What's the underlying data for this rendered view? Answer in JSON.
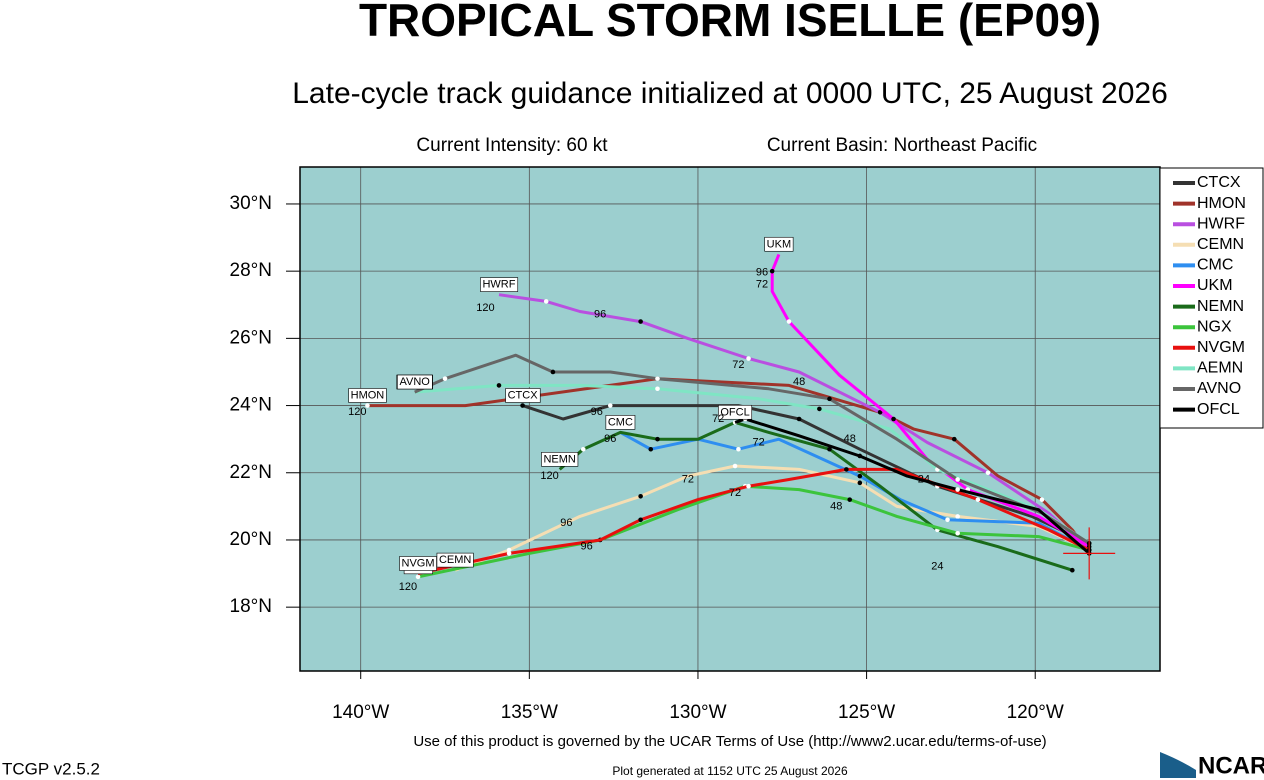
{
  "chart_data": {
    "type": "line",
    "title": "TROPICAL STORM ISELLE (EP09)",
    "subtitle": "Late-cycle track guidance initialized at 0000 UTC, 25 August 2026",
    "intensity": "Current Intensity: 60 kt",
    "basin": "Current Basin: Northeast Pacific",
    "xlim": [
      -141.8,
      -116.3
    ],
    "ylim": [
      16.1,
      31.1
    ],
    "xticks": [
      {
        "value": -140,
        "label": "140°W"
      },
      {
        "value": -135,
        "label": "135°W"
      },
      {
        "value": -130,
        "label": "130°W"
      },
      {
        "value": -125,
        "label": "125°W"
      },
      {
        "value": -120,
        "label": "120°W"
      }
    ],
    "yticks": [
      {
        "value": 18,
        "label": "18°N"
      },
      {
        "value": 20,
        "label": "20°N"
      },
      {
        "value": 22,
        "label": "22°N"
      },
      {
        "value": 24,
        "label": "24°N"
      },
      {
        "value": 26,
        "label": "26°N"
      },
      {
        "value": 28,
        "label": "28°N"
      },
      {
        "value": 30,
        "label": "30°N"
      }
    ],
    "grid": true,
    "background": "#9ccfcf",
    "series": [
      {
        "name": "CTCX",
        "color": "#333333",
        "x": [
          -118.4,
          -120.1,
          -122.9,
          -125.2,
          -127.0,
          -128.8,
          -132.6,
          -134.0,
          -135.2
        ],
        "values": [
          19.9,
          20.7,
          21.6,
          22.7,
          23.6,
          24.0,
          24.0,
          23.6,
          24.0
        ]
      },
      {
        "name": "HMON",
        "color": "#a0332a",
        "x": [
          -118.4,
          -118.9,
          -119.8,
          -121.1,
          -122.4,
          -123.6,
          -124.6,
          -127.3,
          -131.2,
          -136.9,
          -139.8
        ],
        "values": [
          19.6,
          20.3,
          21.2,
          21.9,
          23.0,
          23.3,
          23.8,
          24.6,
          24.8,
          24.0,
          24.0
        ]
      },
      {
        "name": "HWRF",
        "color": "#b94fe0",
        "x": [
          -118.4,
          -119.6,
          -121.4,
          -123.2,
          -124.6,
          -127.0,
          -128.5,
          -130.3,
          -131.7,
          -133.5,
          -134.5,
          -135.9
        ],
        "values": [
          19.7,
          20.8,
          22.0,
          22.9,
          23.8,
          25.0,
          25.4,
          26.0,
          26.5,
          26.8,
          27.1,
          27.3
        ]
      },
      {
        "name": "CEMN",
        "color": "#f5deb3",
        "x": [
          -118.4,
          -119.9,
          -122.3,
          -124.1,
          -125.2,
          -127.0,
          -128.9,
          -130.3,
          -131.7,
          -133.5,
          -135.6,
          -137.2
        ],
        "values": [
          19.7,
          20.4,
          20.7,
          21.0,
          21.7,
          22.1,
          22.2,
          21.9,
          21.3,
          20.7,
          19.7,
          19.1
        ]
      },
      {
        "name": "CMC",
        "color": "#2e8ef0",
        "x": [
          -118.4,
          -119.9,
          -122.6,
          -124.0,
          -125.2,
          -127.6,
          -128.8,
          -130.0,
          -131.4,
          -132.3
        ],
        "values": [
          19.7,
          20.5,
          20.6,
          21.2,
          21.9,
          23.0,
          22.7,
          23.0,
          22.7,
          23.2
        ]
      },
      {
        "name": "UKM",
        "color": "#ff00ff",
        "x": [
          -118.4,
          -119.9,
          -122.0,
          -123.2,
          -124.2,
          -125.8,
          -127.3,
          -127.8,
          -127.8,
          -127.6
        ],
        "values": [
          19.8,
          20.7,
          21.5,
          22.4,
          23.6,
          24.9,
          26.5,
          27.4,
          28.0,
          28.5
        ]
      },
      {
        "name": "NEMN",
        "color": "#1a6b1a",
        "x": [
          -118.9,
          -121.1,
          -122.9,
          -124.6,
          -126.1,
          -127.9,
          -128.9,
          -130.0,
          -131.2,
          -132.3,
          -133.4,
          -134.1
        ],
        "values": [
          19.1,
          19.8,
          20.3,
          21.6,
          22.7,
          23.2,
          23.5,
          23.0,
          23.0,
          23.2,
          22.7,
          22.1
        ]
      },
      {
        "name": "NGX",
        "color": "#3cc43c",
        "x": [
          -118.4,
          -119.9,
          -122.3,
          -124.1,
          -125.5,
          -127.0,
          -128.6,
          -130.6,
          -132.9,
          -135.0,
          -138.3
        ],
        "values": [
          19.7,
          20.1,
          20.2,
          20.7,
          21.2,
          21.5,
          21.6,
          20.9,
          20.0,
          19.6,
          18.9
        ]
      },
      {
        "name": "NVGM",
        "color": "#e8100f",
        "x": [
          -118.4,
          -119.6,
          -121.7,
          -124.1,
          -125.6,
          -127.3,
          -128.5,
          -130.0,
          -131.7,
          -132.9,
          -135.6,
          -138.3
        ],
        "values": [
          19.7,
          20.3,
          21.2,
          22.1,
          22.1,
          21.8,
          21.6,
          21.2,
          20.6,
          20.0,
          19.6,
          19.0
        ]
      },
      {
        "name": "AEMN",
        "color": "#7fe5c4",
        "x": [
          -118.4,
          -119.9,
          -122.9,
          -124.3,
          -126.4,
          -128.2,
          -131.2,
          -133.5,
          -135.9,
          -138.4
        ],
        "values": [
          19.9,
          20.9,
          22.1,
          23.3,
          23.9,
          24.2,
          24.5,
          24.6,
          24.6,
          24.4
        ]
      },
      {
        "name": "AVNO",
        "color": "#666666",
        "x": [
          -118.4,
          -119.8,
          -122.3,
          -124.1,
          -126.1,
          -127.9,
          -131.2,
          -132.6,
          -134.3,
          -135.4,
          -137.5,
          -138.4
        ],
        "values": [
          19.9,
          20.8,
          21.8,
          23.0,
          24.2,
          24.5,
          24.8,
          25.0,
          25.0,
          25.5,
          24.8,
          24.4
        ]
      },
      {
        "name": "OFCL",
        "color": "#000000",
        "x": [
          -118.4,
          -119.9,
          -122.3,
          -123.8,
          -125.2,
          -127.0,
          -128.6,
          -128.9
        ],
        "values": [
          19.6,
          20.9,
          21.5,
          21.9,
          22.5,
          23.1,
          23.6,
          23.5
        ]
      }
    ],
    "hour_labels": [
      {
        "hour": 120,
        "x": -136.3,
        "y": 26.9
      },
      {
        "hour": 96,
        "x": -132.9,
        "y": 26.7
      },
      {
        "hour": 72,
        "x": -128.8,
        "y": 25.2
      },
      {
        "hour": 48,
        "x": -127.0,
        "y": 24.7
      },
      {
        "hour": 120,
        "x": -140.1,
        "y": 23.8
      },
      {
        "hour": 96,
        "x": -133.0,
        "y": 23.8
      },
      {
        "hour": 96,
        "x": -132.6,
        "y": 23.0
      },
      {
        "hour": 120,
        "x": -134.4,
        "y": 21.9
      },
      {
        "hour": 72,
        "x": -130.3,
        "y": 21.8
      },
      {
        "hour": 96,
        "x": -133.9,
        "y": 20.5
      },
      {
        "hour": 72,
        "x": -128.9,
        "y": 21.4
      },
      {
        "hour": 48,
        "x": -125.9,
        "y": 21.0
      },
      {
        "hour": 48,
        "x": -125.5,
        "y": 23.0
      },
      {
        "hour": 24,
        "x": -123.3,
        "y": 21.8
      },
      {
        "hour": 24,
        "x": -122.9,
        "y": 19.2
      },
      {
        "hour": 120,
        "x": -138.6,
        "y": 18.6
      },
      {
        "hour": 96,
        "x": -133.3,
        "y": 19.8
      },
      {
        "hour": 72,
        "x": -128.1,
        "y": 27.6
      },
      {
        "hour": 96,
        "x": -128.1,
        "y": 27.95
      },
      {
        "hour": 72,
        "x": -128.2,
        "y": 22.9
      },
      {
        "hour": 72,
        "x": -129.4,
        "y": 23.6
      }
    ]
  },
  "footer": {
    "terms": "Use of this product is governed by the UCAR Terms of Use (http://www2.ucar.edu/terms-of-use)",
    "version": "TCGP v2.5.2",
    "generated": "Plot generated at 1152 UTC   25 August 2026",
    "logo": "NCAR"
  }
}
